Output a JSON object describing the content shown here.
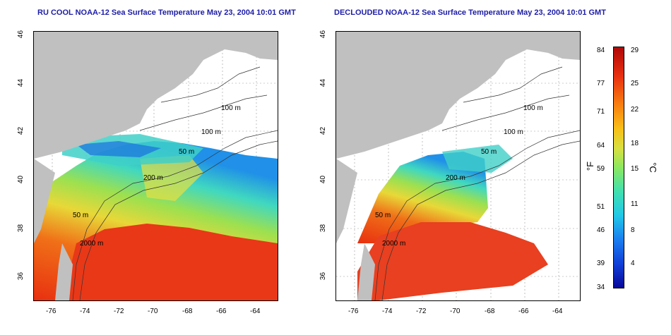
{
  "titles": {
    "left": "RU COOL NOAA-12 Sea Surface Temperature May 23, 2004 10:01 GMT",
    "right": "DECLOUDED NOAA-12 Sea Surface Temperature May 23, 2004 10:01 GMT"
  },
  "axes": {
    "lon_ticks": [
      "-76",
      "-74",
      "-72",
      "-70",
      "-68",
      "-66",
      "-64"
    ],
    "lat_ticks": [
      "46",
      "44",
      "42",
      "40",
      "38",
      "36"
    ]
  },
  "contour_labels": [
    "100 m",
    "100 m",
    "50 m",
    "200 m",
    "50 m",
    "2000 m"
  ],
  "colorbar": {
    "fahrenheit_unit": "°F",
    "celsius_unit": "°C",
    "fahrenheit_ticks": [
      "84",
      "77",
      "71",
      "64",
      "59",
      "51",
      "46",
      "39",
      "34"
    ],
    "celsius_ticks": [
      "29",
      "25",
      "22",
      "18",
      "15",
      "11",
      "8",
      "4"
    ]
  },
  "colors": {
    "land": "#c0c0c0",
    "title": "#1d1da8",
    "warm": "#e83818",
    "mid": "#f8a020",
    "cool": "#40d8c0",
    "cold": "#1040d8"
  }
}
